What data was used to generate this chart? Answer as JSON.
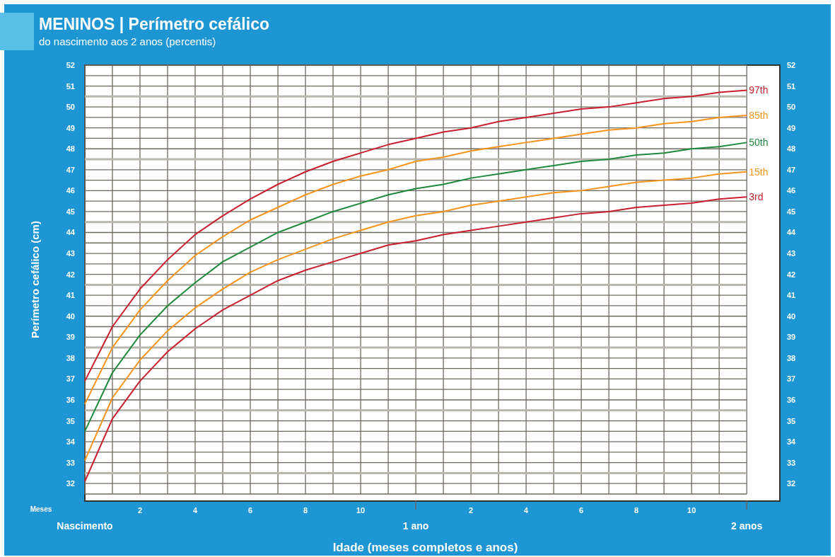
{
  "chart_data": {
    "type": "line",
    "title": "MENINOS | Perímetro cefálico",
    "subtitle": "do nascimento aos 2 anos (percentis)",
    "xlabel": "Idade (meses completos e anos)",
    "ylabel": "Perímetro cefálico (cm)",
    "annotations": [
      "Meses"
    ],
    "categories": [
      null,
      null,
      "2",
      null,
      "4",
      null,
      "6",
      null,
      "8",
      null,
      "10",
      null,
      null,
      null,
      "2",
      null,
      "4",
      null,
      "6",
      null,
      "8",
      null,
      "10",
      null,
      null
    ],
    "series": [
      {
        "name": "97th",
        "color": "#c8202f",
        "values": [
          36.9,
          39.5,
          41.3,
          42.7,
          43.9,
          44.8,
          45.6,
          46.3,
          46.9,
          47.4,
          47.8,
          48.2,
          48.5,
          48.8,
          49.0,
          49.3,
          49.5,
          49.7,
          49.9,
          50.0,
          50.2,
          50.4,
          50.5,
          50.7,
          50.8
        ]
      },
      {
        "name": "85th",
        "color": "#f7941d",
        "values": [
          35.8,
          38.5,
          40.3,
          41.7,
          42.9,
          43.8,
          44.6,
          45.2,
          45.8,
          46.3,
          46.7,
          47.0,
          47.4,
          47.6,
          47.9,
          48.1,
          48.3,
          48.5,
          48.7,
          48.9,
          49.0,
          49.2,
          49.3,
          49.5,
          49.6
        ]
      },
      {
        "name": "50th",
        "color": "#1f8a3c",
        "values": [
          34.5,
          37.3,
          39.1,
          40.5,
          41.6,
          42.6,
          43.3,
          44.0,
          44.5,
          45.0,
          45.4,
          45.8,
          46.1,
          46.3,
          46.6,
          46.8,
          47.0,
          47.2,
          47.4,
          47.5,
          47.7,
          47.8,
          48.0,
          48.1,
          48.3
        ]
      },
      {
        "name": "15th",
        "color": "#f7941d",
        "values": [
          33.1,
          36.1,
          37.9,
          39.3,
          40.4,
          41.3,
          42.1,
          42.7,
          43.2,
          43.7,
          44.1,
          44.5,
          44.8,
          45.0,
          45.3,
          45.5,
          45.7,
          45.9,
          46.0,
          46.2,
          46.4,
          46.5,
          46.6,
          46.8,
          46.9
        ]
      },
      {
        "name": "3rd",
        "color": "#c8202f",
        "values": [
          32.1,
          35.1,
          36.9,
          38.3,
          39.4,
          40.3,
          41.0,
          41.7,
          42.2,
          42.6,
          43.0,
          43.4,
          43.6,
          43.9,
          44.1,
          44.3,
          44.5,
          44.7,
          44.9,
          45.0,
          45.2,
          45.3,
          45.4,
          45.6,
          45.7
        ]
      }
    ],
    "x2lim": [
      0,
      2.1
    ],
    "x2ticks": [
      {
        "value": 0,
        "label": "Nascimento"
      },
      {
        "value": 1,
        "label": "1 ano"
      },
      {
        "value": 2,
        "label": "2 anos"
      }
    ],
    "ylim": [
      31.5,
      52
    ],
    "yticks": [
      32,
      33,
      34,
      35,
      36,
      37,
      38,
      39,
      40,
      41,
      42,
      43,
      44,
      45,
      46,
      47,
      48,
      49,
      50,
      51,
      52
    ],
    "y2lim": [
      31.5,
      52
    ],
    "y2ticks": [
      32,
      33,
      34,
      35,
      36,
      37,
      38,
      39,
      40,
      41,
      42,
      43,
      44,
      45,
      46,
      47,
      48,
      49,
      50,
      51,
      52
    ],
    "grid": true,
    "legend": false,
    "marker": "none",
    "line_style": "solid"
  }
}
